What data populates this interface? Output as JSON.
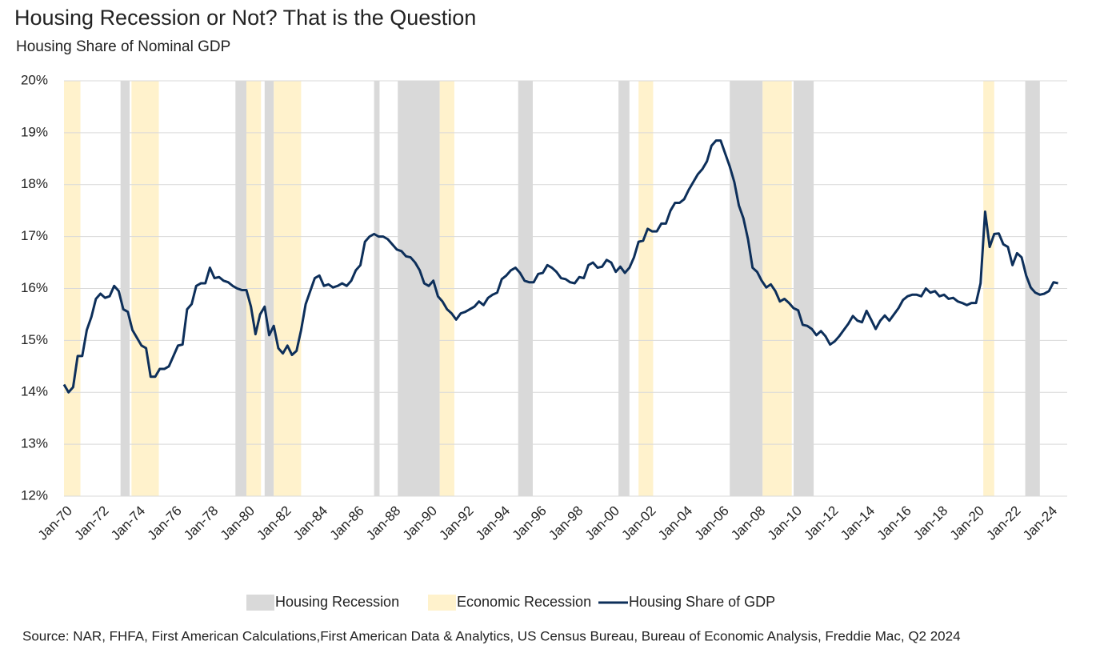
{
  "chart_data": {
    "type": "line",
    "title": "Housing Recession or Not? That is the Question",
    "subtitle": "Housing Share of Nominal GDP",
    "source": "Source: NAR, FHFA, First American Calculations,First American Data & Analytics, US Census Bureau, Bureau of Economic Analysis, Freddie Mac, Q2 2024",
    "xlim": [
      1970,
      2025
    ],
    "xticks": [
      {
        "value": 1970,
        "label": "Jan-70"
      },
      {
        "value": 1972,
        "label": "Jan-72"
      },
      {
        "value": 1974,
        "label": "Jan-74"
      },
      {
        "value": 1976,
        "label": "Jan-76"
      },
      {
        "value": 1978,
        "label": "Jan-78"
      },
      {
        "value": 1980,
        "label": "Jan-80"
      },
      {
        "value": 1982,
        "label": "Jan-82"
      },
      {
        "value": 1984,
        "label": "Jan-84"
      },
      {
        "value": 1986,
        "label": "Jan-86"
      },
      {
        "value": 1988,
        "label": "Jan-88"
      },
      {
        "value": 1990,
        "label": "Jan-90"
      },
      {
        "value": 1992,
        "label": "Jan-92"
      },
      {
        "value": 1994,
        "label": "Jan-94"
      },
      {
        "value": 1996,
        "label": "Jan-96"
      },
      {
        "value": 1998,
        "label": "Jan-98"
      },
      {
        "value": 2000,
        "label": "Jan-00"
      },
      {
        "value": 2002,
        "label": "Jan-02"
      },
      {
        "value": 2004,
        "label": "Jan-04"
      },
      {
        "value": 2006,
        "label": "Jan-06"
      },
      {
        "value": 2008,
        "label": "Jan-08"
      },
      {
        "value": 2010,
        "label": "Jan-10"
      },
      {
        "value": 2012,
        "label": "Jan-12"
      },
      {
        "value": 2014,
        "label": "Jan-14"
      },
      {
        "value": 2016,
        "label": "Jan-16"
      },
      {
        "value": 2018,
        "label": "Jan-18"
      },
      {
        "value": 2020,
        "label": "Jan-20"
      },
      {
        "value": 2022,
        "label": "Jan-22"
      },
      {
        "value": 2024,
        "label": "Jan-24"
      }
    ],
    "ylim": [
      12,
      20
    ],
    "yticks": [
      {
        "value": 12,
        "label": "12%"
      },
      {
        "value": 13,
        "label": "13%"
      },
      {
        "value": 14,
        "label": "14%"
      },
      {
        "value": 15,
        "label": "15%"
      },
      {
        "value": 16,
        "label": "16%"
      },
      {
        "value": 17,
        "label": "17%"
      },
      {
        "value": 18,
        "label": "18%"
      },
      {
        "value": 19,
        "label": "19%"
      },
      {
        "value": 20,
        "label": "20%"
      }
    ],
    "grid": true,
    "bands": [
      {
        "name": "Housing Recession",
        "color": "#d9d9d9",
        "ranges": [
          [
            1973.1,
            1973.6
          ],
          [
            1979.4,
            1980.0
          ],
          [
            1981.0,
            1981.5
          ],
          [
            1987.0,
            1987.3
          ],
          [
            1988.3,
            1990.6
          ],
          [
            1994.9,
            1995.7
          ],
          [
            2000.4,
            2001.0
          ],
          [
            2006.5,
            2008.3
          ],
          [
            2010.0,
            2011.1
          ],
          [
            2022.7,
            2023.5
          ]
        ]
      },
      {
        "name": "Economic Recession",
        "color": "#fff2cc",
        "ranges": [
          [
            1970.0,
            1970.9
          ],
          [
            1973.7,
            1975.2
          ],
          [
            1980.0,
            1980.8
          ],
          [
            1981.5,
            1983.0
          ],
          [
            1990.6,
            1991.4
          ],
          [
            2001.5,
            2002.3
          ],
          [
            2008.3,
            2009.9
          ],
          [
            2020.4,
            2021.0
          ]
        ]
      }
    ],
    "x": [
      1970,
      1970.25,
      1970.5,
      1970.75,
      1971,
      1971.25,
      1971.5,
      1971.75,
      1972,
      1972.25,
      1972.5,
      1972.75,
      1973,
      1973.25,
      1973.5,
      1973.75,
      1974,
      1974.25,
      1974.5,
      1974.75,
      1975,
      1975.25,
      1975.5,
      1975.75,
      1976,
      1976.25,
      1976.5,
      1976.75,
      1977,
      1977.25,
      1977.5,
      1977.75,
      1978,
      1978.25,
      1978.5,
      1978.75,
      1979,
      1979.25,
      1979.5,
      1979.75,
      1980,
      1980.25,
      1980.5,
      1980.75,
      1981,
      1981.25,
      1981.5,
      1981.75,
      1982,
      1982.25,
      1982.5,
      1982.75,
      1983,
      1983.25,
      1983.5,
      1983.75,
      1984,
      1984.25,
      1984.5,
      1984.75,
      1985,
      1985.25,
      1985.5,
      1985.75,
      1986,
      1986.25,
      1986.5,
      1986.75,
      1987,
      1987.25,
      1987.5,
      1987.75,
      1988,
      1988.25,
      1988.5,
      1988.75,
      1989,
      1989.25,
      1989.5,
      1989.75,
      1990,
      1990.25,
      1990.5,
      1990.75,
      1991,
      1991.25,
      1991.5,
      1991.75,
      1992,
      1992.25,
      1992.5,
      1992.75,
      1993,
      1993.25,
      1993.5,
      1993.75,
      1994,
      1994.25,
      1994.5,
      1994.75,
      1995,
      1995.25,
      1995.5,
      1995.75,
      1996,
      1996.25,
      1996.5,
      1996.75,
      1997,
      1997.25,
      1997.5,
      1997.75,
      1998,
      1998.25,
      1998.5,
      1998.75,
      1999,
      1999.25,
      1999.5,
      1999.75,
      2000,
      2000.25,
      2000.5,
      2000.75,
      2001,
      2001.25,
      2001.5,
      2001.75,
      2002,
      2002.25,
      2002.5,
      2002.75,
      2003,
      2003.25,
      2003.5,
      2003.75,
      2004,
      2004.25,
      2004.5,
      2004.75,
      2005,
      2005.25,
      2005.5,
      2005.75,
      2006,
      2006.25,
      2006.5,
      2006.75,
      2007,
      2007.25,
      2007.5,
      2007.75,
      2008,
      2008.25,
      2008.5,
      2008.75,
      2009,
      2009.25,
      2009.5,
      2009.75,
      2010,
      2010.25,
      2010.5,
      2010.75,
      2011,
      2011.25,
      2011.5,
      2011.75,
      2012,
      2012.25,
      2012.5,
      2012.75,
      2013,
      2013.25,
      2013.5,
      2013.75,
      2014,
      2014.25,
      2014.5,
      2014.75,
      2015,
      2015.25,
      2015.5,
      2015.75,
      2016,
      2016.25,
      2016.5,
      2016.75,
      2017,
      2017.25,
      2017.5,
      2017.75,
      2018,
      2018.25,
      2018.5,
      2018.75,
      2019,
      2019.25,
      2019.5,
      2019.75,
      2020,
      2020.25,
      2020.5,
      2020.75,
      2021,
      2021.25,
      2021.5,
      2021.75,
      2022,
      2022.25,
      2022.5,
      2022.75,
      2023,
      2023.25,
      2023.5,
      2023.75,
      2024,
      2024.25,
      2024.5
    ],
    "series": [
      {
        "name": "Housing Share of GDP",
        "color": "#0d2f5a",
        "values": [
          14.15,
          14.0,
          14.1,
          14.7,
          14.7,
          15.2,
          15.45,
          15.8,
          15.9,
          15.82,
          15.85,
          16.05,
          15.95,
          15.6,
          15.55,
          15.2,
          15.05,
          14.9,
          14.85,
          14.3,
          14.3,
          14.45,
          14.45,
          14.5,
          14.7,
          14.9,
          14.92,
          15.6,
          15.7,
          16.05,
          16.1,
          16.1,
          16.4,
          16.2,
          16.22,
          16.15,
          16.12,
          16.05,
          16.0,
          15.97,
          15.97,
          15.65,
          15.12,
          15.5,
          15.65,
          15.1,
          15.28,
          14.85,
          14.75,
          14.9,
          14.72,
          14.8,
          15.2,
          15.7,
          15.95,
          16.2,
          16.25,
          16.05,
          16.08,
          16.02,
          16.05,
          16.1,
          16.05,
          16.15,
          16.35,
          16.45,
          16.9,
          17.0,
          17.05,
          17.0,
          17.0,
          16.95,
          16.85,
          16.75,
          16.72,
          16.62,
          16.6,
          16.5,
          16.35,
          16.1,
          16.05,
          16.15,
          15.85,
          15.75,
          15.6,
          15.52,
          15.4,
          15.52,
          15.55,
          15.6,
          15.65,
          15.75,
          15.68,
          15.82,
          15.88,
          15.92,
          16.18,
          16.25,
          16.35,
          16.4,
          16.3,
          16.15,
          16.12,
          16.12,
          16.28,
          16.3,
          16.45,
          16.4,
          16.32,
          16.2,
          16.18,
          16.12,
          16.1,
          16.22,
          16.2,
          16.45,
          16.5,
          16.4,
          16.42,
          16.55,
          16.5,
          16.32,
          16.42,
          16.3,
          16.4,
          16.6,
          16.9,
          16.92,
          17.15,
          17.1,
          17.1,
          17.25,
          17.25,
          17.5,
          17.65,
          17.65,
          17.72,
          17.9,
          18.05,
          18.2,
          18.3,
          18.45,
          18.75,
          18.85,
          18.85,
          18.6,
          18.35,
          18.05,
          17.6,
          17.35,
          16.95,
          16.4,
          16.32,
          16.15,
          16.02,
          16.08,
          15.95,
          15.75,
          15.8,
          15.72,
          15.62,
          15.58,
          15.3,
          15.28,
          15.22,
          15.1,
          15.18,
          15.08,
          14.92,
          14.98,
          15.08,
          15.2,
          15.32,
          15.47,
          15.38,
          15.35,
          15.57,
          15.4,
          15.22,
          15.38,
          15.48,
          15.38,
          15.5,
          15.62,
          15.78,
          15.85,
          15.88,
          15.88,
          15.85,
          16.0,
          15.92,
          15.95,
          15.85,
          15.88,
          15.8,
          15.82,
          15.75,
          15.72,
          15.68,
          15.72,
          15.72,
          16.1,
          17.48,
          16.8,
          17.05,
          17.06,
          16.85,
          16.8,
          16.45,
          16.68,
          16.6,
          16.25,
          16.02,
          15.92,
          15.88,
          15.9,
          15.95,
          16.12,
          16.1
        ]
      }
    ]
  }
}
